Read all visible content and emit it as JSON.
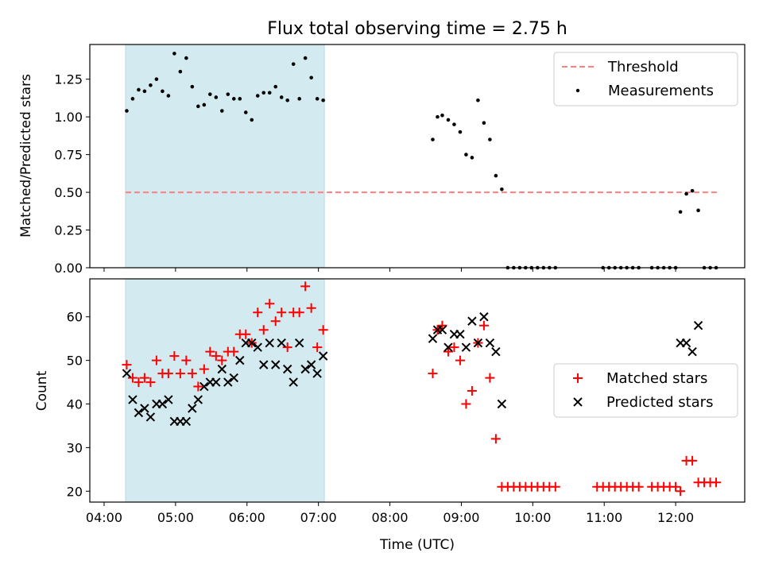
{
  "figure": {
    "title": "Flux total observing time = 2.75 h",
    "xlabel": "Time (UTC)",
    "x_tick_labels": [
      "04:00",
      "05:00",
      "06:00",
      "07:00",
      "08:00",
      "09:00",
      "10:00",
      "11:00",
      "12:00"
    ]
  },
  "colors": {
    "shade": "#d3eaf0",
    "shade_edge": "#b9dbe3",
    "threshold": "#ff8080",
    "measurements": "#000000",
    "matched": "#ff0000",
    "predicted": "#000000"
  },
  "chart_data": [
    {
      "type": "scatter",
      "ylabel": "Matched/Predicted stars",
      "xlim": [
        "04:00",
        "12:58"
      ],
      "ylim": [
        0,
        1.48
      ],
      "y_tick_labels": [
        "0.00",
        "0.25",
        "0.50",
        "0.75",
        "1.00",
        "1.25"
      ],
      "shaded_region": {
        "x": [
          "04:18",
          "07:05"
        ]
      },
      "legend": {
        "placement": "top-right",
        "entries": [
          "Threshold",
          "Measurements"
        ]
      },
      "threshold": {
        "name": "Threshold",
        "y": 0.5,
        "x": [
          "04:18",
          "12:35"
        ],
        "style": "dashed"
      },
      "series": [
        {
          "name": "Measurements",
          "points": [
            [
              "04:19",
              1.04
            ],
            [
              "04:24",
              1.12
            ],
            [
              "04:29",
              1.18
            ],
            [
              "04:34",
              1.17
            ],
            [
              "04:39",
              1.21
            ],
            [
              "04:44",
              1.25
            ],
            [
              "04:49",
              1.17
            ],
            [
              "04:54",
              1.14
            ],
            [
              "04:59",
              1.42
            ],
            [
              "05:04",
              1.3
            ],
            [
              "05:09",
              1.39
            ],
            [
              "05:14",
              1.2
            ],
            [
              "05:19",
              1.07
            ],
            [
              "05:24",
              1.08
            ],
            [
              "05:29",
              1.15
            ],
            [
              "05:34",
              1.13
            ],
            [
              "05:39",
              1.04
            ],
            [
              "05:44",
              1.15
            ],
            [
              "05:49",
              1.12
            ],
            [
              "05:54",
              1.12
            ],
            [
              "05:59",
              1.03
            ],
            [
              "06:04",
              0.98
            ],
            [
              "06:09",
              1.14
            ],
            [
              "06:14",
              1.16
            ],
            [
              "06:19",
              1.16
            ],
            [
              "06:24",
              1.2
            ],
            [
              "06:29",
              1.13
            ],
            [
              "06:34",
              1.11
            ],
            [
              "06:39",
              1.35
            ],
            [
              "06:44",
              1.12
            ],
            [
              "06:49",
              1.39
            ],
            [
              "06:54",
              1.26
            ],
            [
              "06:59",
              1.12
            ],
            [
              "07:04",
              1.11
            ],
            [
              "08:36",
              0.85
            ],
            [
              "08:40",
              1.0
            ],
            [
              "08:44",
              1.01
            ],
            [
              "08:49",
              0.98
            ],
            [
              "08:54",
              0.95
            ],
            [
              "08:59",
              0.9
            ],
            [
              "09:04",
              0.75
            ],
            [
              "09:09",
              0.73
            ],
            [
              "09:14",
              1.11
            ],
            [
              "09:19",
              0.96
            ],
            [
              "09:24",
              0.85
            ],
            [
              "09:29",
              0.61
            ],
            [
              "09:34",
              0.52
            ],
            [
              "09:39",
              0.0
            ],
            [
              "09:44",
              0.0
            ],
            [
              "09:49",
              0.0
            ],
            [
              "09:54",
              0.0
            ],
            [
              "09:59",
              0.0
            ],
            [
              "10:04",
              0.0
            ],
            [
              "10:09",
              0.0
            ],
            [
              "10:14",
              0.0
            ],
            [
              "10:19",
              0.0
            ],
            [
              "10:59",
              0.0
            ],
            [
              "11:04",
              0.0
            ],
            [
              "11:09",
              0.0
            ],
            [
              "11:14",
              0.0
            ],
            [
              "11:19",
              0.0
            ],
            [
              "11:24",
              0.0
            ],
            [
              "11:29",
              0.0
            ],
            [
              "11:40",
              0.0
            ],
            [
              "11:45",
              0.0
            ],
            [
              "11:50",
              0.0
            ],
            [
              "11:55",
              0.0
            ],
            [
              "12:00",
              0.0
            ],
            [
              "12:04",
              0.37
            ],
            [
              "12:09",
              0.49
            ],
            [
              "12:14",
              0.51
            ],
            [
              "12:19",
              0.38
            ],
            [
              "12:24",
              0.0
            ],
            [
              "12:29",
              0.0
            ],
            [
              "12:34",
              0.0
            ]
          ]
        }
      ]
    },
    {
      "type": "scatter",
      "ylabel": "Count",
      "xlim": [
        "04:00",
        "12:58"
      ],
      "ylim": [
        17.5,
        68.7
      ],
      "y_tick_labels": [
        "20",
        "30",
        "40",
        "50",
        "60"
      ],
      "shaded_region": {
        "x": [
          "04:18",
          "07:05"
        ]
      },
      "legend": {
        "placement": "center-right",
        "entries": [
          "Matched stars",
          "Predicted stars"
        ]
      },
      "series": [
        {
          "name": "Matched stars",
          "marker": "plus",
          "points": [
            [
              "04:19",
              49
            ],
            [
              "04:24",
              46
            ],
            [
              "04:29",
              45
            ],
            [
              "04:34",
              46
            ],
            [
              "04:39",
              45
            ],
            [
              "04:44",
              50
            ],
            [
              "04:49",
              47
            ],
            [
              "04:54",
              47
            ],
            [
              "04:59",
              51
            ],
            [
              "05:04",
              47
            ],
            [
              "05:09",
              50
            ],
            [
              "05:14",
              47
            ],
            [
              "05:19",
              44
            ],
            [
              "05:24",
              48
            ],
            [
              "05:29",
              52
            ],
            [
              "05:34",
              51
            ],
            [
              "05:39",
              50
            ],
            [
              "05:44",
              52
            ],
            [
              "05:49",
              52
            ],
            [
              "05:54",
              56
            ],
            [
              "05:59",
              56
            ],
            [
              "06:04",
              54
            ],
            [
              "06:09",
              61
            ],
            [
              "06:14",
              57
            ],
            [
              "06:19",
              63
            ],
            [
              "06:24",
              59
            ],
            [
              "06:29",
              61
            ],
            [
              "06:34",
              53
            ],
            [
              "06:39",
              61
            ],
            [
              "06:44",
              61
            ],
            [
              "06:49",
              67
            ],
            [
              "06:54",
              62
            ],
            [
              "06:59",
              53
            ],
            [
              "07:04",
              57
            ],
            [
              "08:36",
              47
            ],
            [
              "08:40",
              57
            ],
            [
              "08:44",
              58
            ],
            [
              "08:49",
              52
            ],
            [
              "08:54",
              53
            ],
            [
              "08:59",
              50
            ],
            [
              "09:04",
              40
            ],
            [
              "09:09",
              43
            ],
            [
              "09:14",
              54
            ],
            [
              "09:19",
              58
            ],
            [
              "09:24",
              46
            ],
            [
              "09:29",
              32
            ],
            [
              "09:34",
              21
            ],
            [
              "09:39",
              21
            ],
            [
              "09:44",
              21
            ],
            [
              "09:49",
              21
            ],
            [
              "09:54",
              21
            ],
            [
              "09:59",
              21
            ],
            [
              "10:04",
              21
            ],
            [
              "10:09",
              21
            ],
            [
              "10:14",
              21
            ],
            [
              "10:19",
              21
            ],
            [
              "10:54",
              21
            ],
            [
              "10:59",
              21
            ],
            [
              "11:04",
              21
            ],
            [
              "11:09",
              21
            ],
            [
              "11:14",
              21
            ],
            [
              "11:19",
              21
            ],
            [
              "11:24",
              21
            ],
            [
              "11:29",
              21
            ],
            [
              "11:40",
              21
            ],
            [
              "11:45",
              21
            ],
            [
              "11:50",
              21
            ],
            [
              "11:55",
              21
            ],
            [
              "12:00",
              21
            ],
            [
              "12:04",
              20
            ],
            [
              "12:09",
              27
            ],
            [
              "12:14",
              27
            ],
            [
              "12:19",
              22
            ],
            [
              "12:24",
              22
            ],
            [
              "12:29",
              22
            ],
            [
              "12:34",
              22
            ]
          ]
        },
        {
          "name": "Predicted stars",
          "marker": "x",
          "points": [
            [
              "04:19",
              47
            ],
            [
              "04:24",
              41
            ],
            [
              "04:29",
              38
            ],
            [
              "04:34",
              39
            ],
            [
              "04:39",
              37
            ],
            [
              "04:44",
              40
            ],
            [
              "04:49",
              40
            ],
            [
              "04:54",
              41
            ],
            [
              "04:59",
              36
            ],
            [
              "05:04",
              36
            ],
            [
              "05:09",
              36
            ],
            [
              "05:14",
              39
            ],
            [
              "05:19",
              41
            ],
            [
              "05:24",
              44
            ],
            [
              "05:29",
              45
            ],
            [
              "05:34",
              45
            ],
            [
              "05:39",
              48
            ],
            [
              "05:44",
              45
            ],
            [
              "05:49",
              46
            ],
            [
              "05:54",
              50
            ],
            [
              "05:59",
              54
            ],
            [
              "06:04",
              54
            ],
            [
              "06:09",
              53
            ],
            [
              "06:14",
              49
            ],
            [
              "06:19",
              54
            ],
            [
              "06:24",
              49
            ],
            [
              "06:29",
              54
            ],
            [
              "06:34",
              48
            ],
            [
              "06:39",
              45
            ],
            [
              "06:44",
              54
            ],
            [
              "06:49",
              48
            ],
            [
              "06:54",
              49
            ],
            [
              "06:59",
              47
            ],
            [
              "07:04",
              51
            ],
            [
              "08:36",
              55
            ],
            [
              "08:40",
              57
            ],
            [
              "08:44",
              57
            ],
            [
              "08:49",
              53
            ],
            [
              "08:54",
              56
            ],
            [
              "08:59",
              56
            ],
            [
              "09:04",
              53
            ],
            [
              "09:09",
              59
            ],
            [
              "09:14",
              54
            ],
            [
              "09:19",
              60
            ],
            [
              "09:24",
              54
            ],
            [
              "09:29",
              52
            ],
            [
              "09:34",
              40
            ],
            [
              "12:04",
              54
            ],
            [
              "12:09",
              54
            ],
            [
              "12:14",
              52
            ],
            [
              "12:19",
              58
            ]
          ]
        }
      ]
    }
  ]
}
